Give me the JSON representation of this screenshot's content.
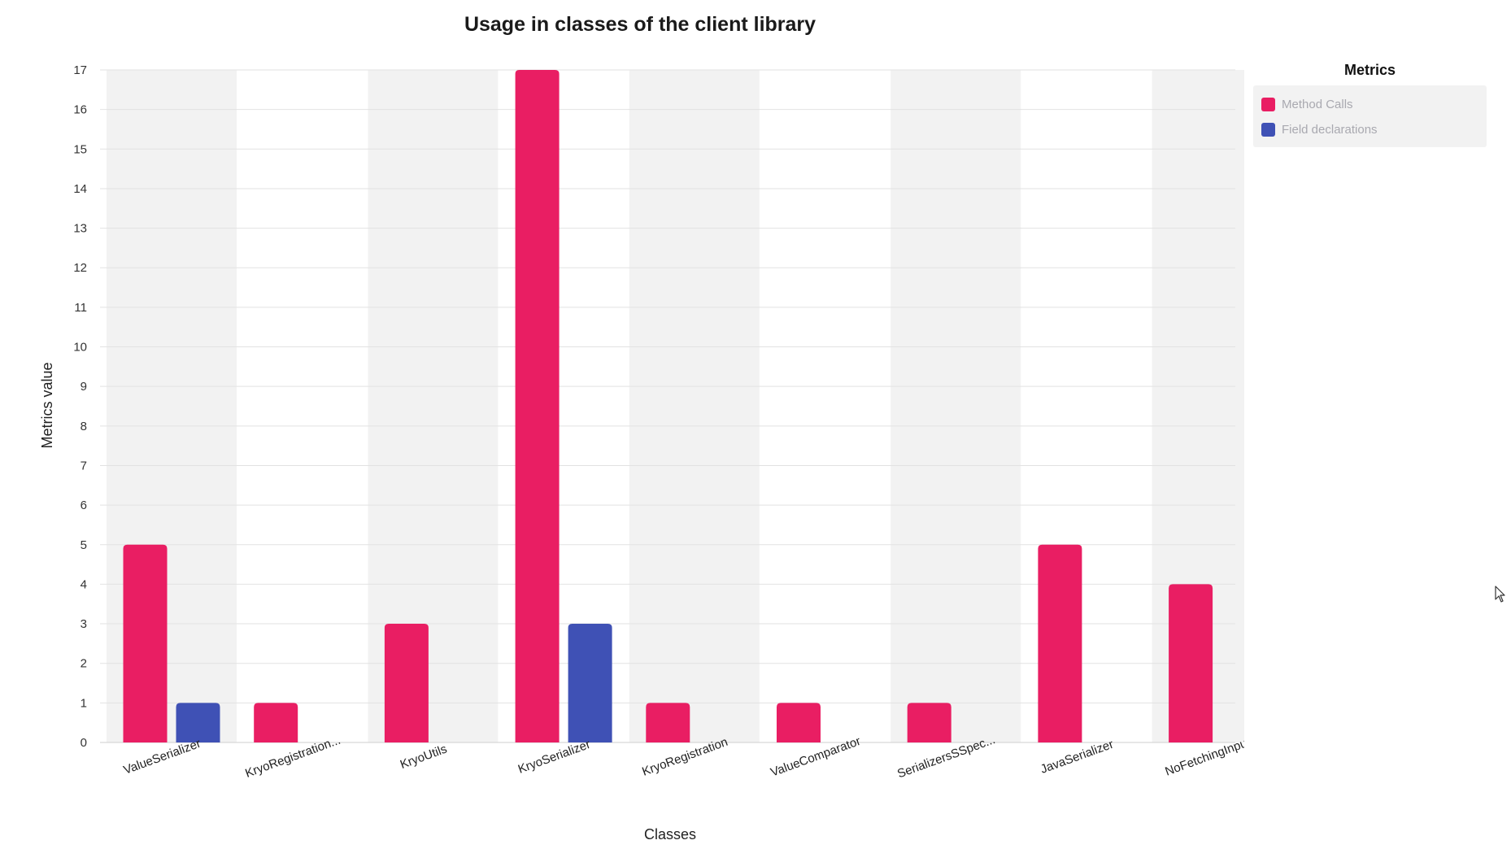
{
  "chart_data": {
    "type": "bar",
    "title": "Usage in classes of the client library",
    "xlabel": "Classes",
    "ylabel": "Metrics value",
    "ylim": [
      0,
      17
    ],
    "yticks": [
      "0",
      "1",
      "2",
      "3",
      "4",
      "5",
      "6",
      "7",
      "8",
      "9",
      "10",
      "11",
      "12",
      "13",
      "14",
      "15",
      "16",
      "17"
    ],
    "categories": [
      "ValueSerializer",
      "KryoRegistration...",
      "KryoUtils",
      "KryoSerializer",
      "KryoRegistration",
      "ValueComparator",
      "SerializersSSpec...",
      "JavaSerializer",
      "NoFetchingInput"
    ],
    "series": [
      {
        "name": "Method Calls",
        "color": "#e91e63",
        "values": [
          5,
          1,
          3,
          17,
          1,
          1,
          1,
          5,
          4
        ]
      },
      {
        "name": "Field declarations",
        "color": "#3f51b5",
        "values": [
          1,
          0,
          0,
          3,
          0,
          0,
          0,
          0,
          0
        ]
      }
    ],
    "grid": true,
    "alternating_band_color": "#f2f2f2",
    "legend": {
      "title": "Metrics",
      "placement": "top-right"
    }
  },
  "cursor_icon": "mouse-pointer-icon"
}
